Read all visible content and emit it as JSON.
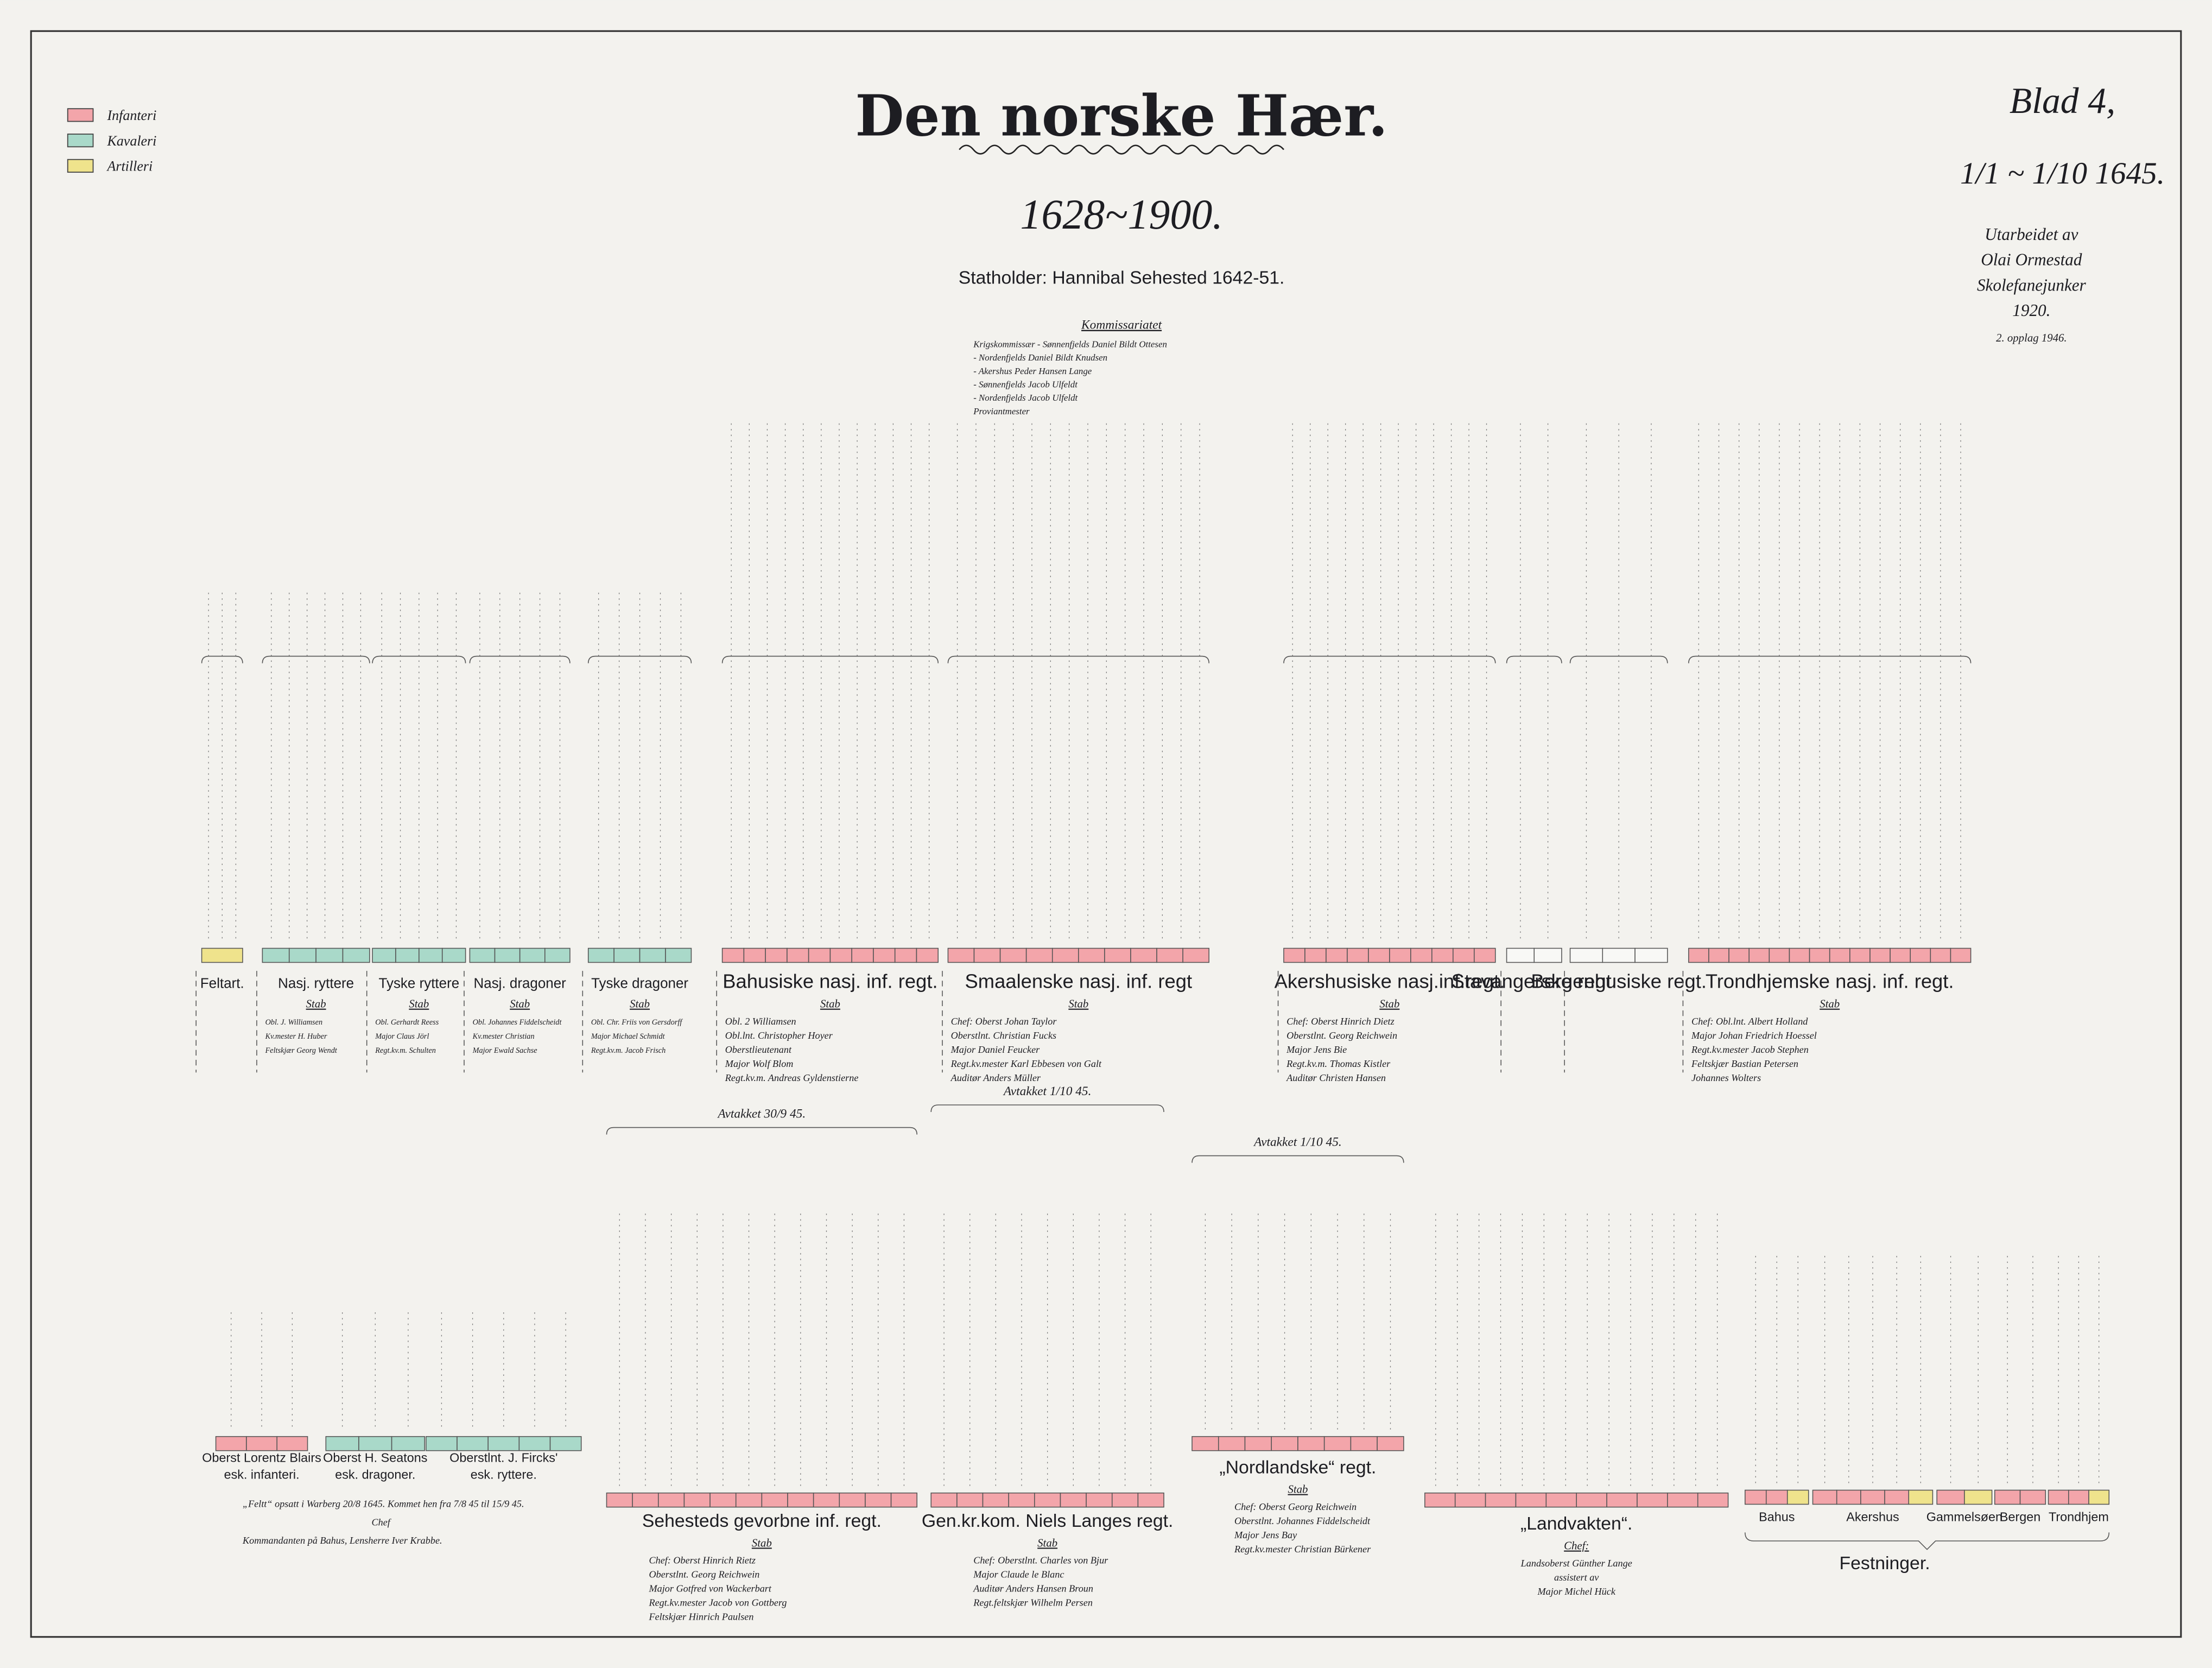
{
  "header": {
    "title": "Den norske Hær.",
    "years": "1628~1900.",
    "statholder": "Statholder: Hannibal Sehested 1642-51.",
    "sheet": "Blad 4,",
    "date": "1/1 ~ 1/10 1645."
  },
  "author": {
    "lines": [
      "Utarbeidet av",
      "Olai Ormestad",
      "Skolefanejunker",
      "1920.",
      "2. opplag 1946."
    ]
  },
  "legend": {
    "items": [
      "Infanteri",
      "Kavaleri",
      "Artilleri"
    ]
  },
  "kommissariatet": {
    "title": "Kommissariatet",
    "rows": [
      "Krigskommissær - Sønnenfjelds Daniel Bildt Ottesen",
      "- Nordenfjelds Daniel Bildt Knudsen",
      "- Akershus Peder Hansen Lange",
      "- Sønnenfjelds Jacob Ulfeldt",
      "- Nordenfjelds Jacob Ulfeldt",
      "Proviantmester"
    ]
  },
  "units_top": [
    {
      "name": "Feltart."
    },
    {
      "name": "Nasj. ryttere",
      "staff": "Stab",
      "lines": [
        "Obl. J. Williamsen",
        "Kv.mester H. Huber",
        "Feltskjær Georg Wendt"
      ]
    },
    {
      "name": "Tyske ryttere",
      "staff": "Stab",
      "lines": [
        "Obl. Gerhardt Reess",
        "Major Claus Jörl",
        "Regt.kv.m. Schulten"
      ]
    },
    {
      "name": "Nasj. dragoner",
      "staff": "Stab",
      "lines": [
        "Obl. Johannes Fiddelscheidt",
        "Kv.mester Christian",
        "Major Ewald Sachse"
      ]
    },
    {
      "name": "Tyske dragoner",
      "staff": "Stab",
      "lines": [
        "Obl. Chr. Friis von Gersdorff",
        "Major Michael Schmidt",
        "Regt.kv.m. Jacob Frisch"
      ]
    },
    {
      "name": "Bahusiske nasj. inf. regt.",
      "staff": "Stab",
      "lines": [
        "Obl. 2 Williamsen",
        "Obl.lnt. Christopher Hoyer",
        "Oberstlieutenant",
        "Major Wolf Blom",
        "Regt.kv.m. Andreas Gyldenstierne"
      ]
    },
    {
      "name": "Smaalenske nasj. inf. regt",
      "staff": "Stab",
      "lines": [
        "Chef: Oberst Johan Taylor",
        "Oberstlnt. Christian Fucks",
        "Major Daniel Feucker",
        "Regt.kv.mester Karl Ebbesen von Galt",
        "Auditør Anders Müller"
      ]
    },
    {
      "name": "Akershusiske nasj.inf.regt.",
      "staff": "Stab",
      "lines": [
        "Chef: Oberst Hinrich Dietz",
        "Oberstlnt. Georg Reichwein",
        "Major Jens Bie",
        "Regt.kv.m. Thomas Kistler",
        "Auditør Christen Hansen"
      ]
    },
    {
      "name": "Stavangerske regt."
    },
    {
      "name": "Bergenhusiske regt."
    },
    {
      "name": "Trondhjemske nasj. inf. regt.",
      "staff": "Stab",
      "lines": [
        "Chef: Obl.lnt. Albert Holland",
        "Major Johan Friedrich Hoessel",
        "Regt.kv.mester Jacob Stephen",
        "Feltskjær Bastian Petersen",
        "Johannes Wolters"
      ]
    }
  ],
  "units_bottom": [
    {
      "name": "Oberst Lorentz Blairs",
      "sub": "esk. infanteri."
    },
    {
      "name": "Oberst H. Seatons",
      "sub": "esk. dragoner."
    },
    {
      "name": "Oberstlnt. J. Fircks'",
      "sub": "esk. ryttere."
    },
    {
      "name": "Sehesteds gevorbne inf. regt.",
      "staff": "Stab",
      "lines": [
        "Chef: Oberst Hinrich Rietz",
        "Oberstlnt. Georg Reichwein",
        "Major Gotfred von Wackerbart",
        "Regt.kv.mester Jacob von Gottberg",
        "Feltskjær Hinrich Paulsen"
      ],
      "note": "Avtakket 30/9 45."
    },
    {
      "name": "Gen.kr.kom. Niels Langes regt.",
      "staff": "Stab",
      "lines": [
        "Chef: Oberstlnt. Charles von Bjur",
        "Major Claude le Blanc",
        "Auditør Anders Hansen Broun",
        "Regt.feltskjær Wilhelm Persen"
      ],
      "note": "Avtakket 1/10 45."
    },
    {
      "name": "„Nordlandske“ regt.",
      "staff": "Stab",
      "lines": [
        "Chef: Oberst Georg Reichwein",
        "Oberstlnt. Johannes Fiddelscheidt",
        "Major Jens Bay",
        "Regt.kv.mester Christian Bürkener"
      ],
      "note": "Avtakket 1/10 45."
    },
    {
      "name": "„Landvakten“.",
      "staff": "Chef:",
      "lines": [
        "Landsoberst Günther Lange",
        "assistert av",
        "Major Michel Hück"
      ]
    }
  ],
  "festninger": {
    "title": "Festninger.",
    "items": [
      "Bahus",
      "Akershus",
      "Gammelsøen",
      "Bergen",
      "Trondhjem"
    ]
  },
  "notes": {
    "bahus": [
      "„Feltt“ opsatt i Warberg 20/8 1645. Kommet hen fra 7/8 45 til 15/9 45.",
      "Chef",
      "Kommandanten på Bahus, Lensherre Iver Krabbe."
    ]
  }
}
